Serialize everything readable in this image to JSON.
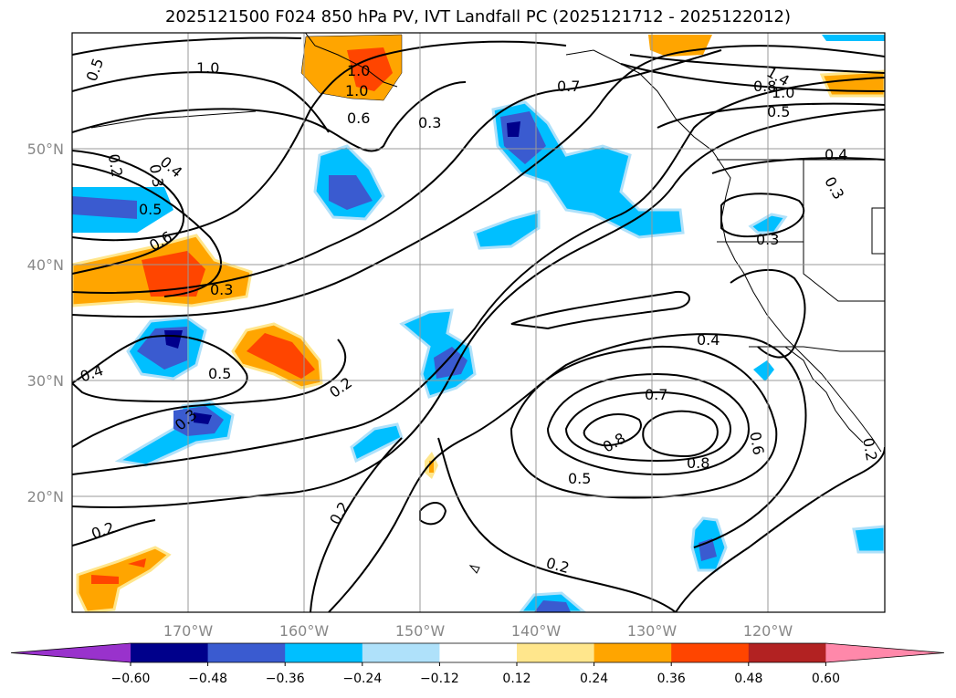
{
  "title": "2025121500 F024 850 hPa PV, IVT Landfall PC (2025121712 - 2025122012)",
  "map": {
    "projection": "PlateCarree",
    "lon_range": [
      -180,
      -110
    ],
    "lat_range": [
      10,
      60
    ],
    "lon_ticks": [
      "170°W",
      "160°W",
      "150°W",
      "140°W",
      "130°W",
      "120°W"
    ],
    "lat_ticks": [
      "50°N",
      "40°N",
      "30°N",
      "20°N"
    ],
    "grid": true
  },
  "colorbar": {
    "ticks": [
      "−0.60",
      "−0.48",
      "−0.36",
      "−0.24",
      "−0.12",
      "0.12",
      "0.24",
      "0.36",
      "0.48",
      "0.60"
    ],
    "colors": [
      "#9932cc",
      "#00008b",
      "#3a5bd0",
      "#00bfff",
      "#afe1fa",
      "#ffffff",
      "#ffe68c",
      "#ffa500",
      "#ff4500",
      "#b22222",
      "#ff88aa"
    ],
    "extend": "both"
  },
  "contour_labels": [
    {
      "text": "0.5"
    },
    {
      "text": "1.0"
    },
    {
      "text": "1.0"
    },
    {
      "text": "1.0"
    },
    {
      "text": "0.6"
    },
    {
      "text": "0.3"
    },
    {
      "text": "0.2"
    },
    {
      "text": "0.3"
    },
    {
      "text": "0.4"
    },
    {
      "text": "0.5"
    },
    {
      "text": "0.6"
    },
    {
      "text": "0.3"
    },
    {
      "text": "0.7"
    },
    {
      "text": "1.4"
    },
    {
      "text": "0.8"
    },
    {
      "text": "1.0"
    },
    {
      "text": "0.5"
    },
    {
      "text": "0.4"
    },
    {
      "text": "0.3"
    },
    {
      "text": "0.3"
    },
    {
      "text": "0.4"
    },
    {
      "text": "0.5"
    },
    {
      "text": "0.2"
    },
    {
      "text": "0.3"
    },
    {
      "text": "0.4"
    },
    {
      "text": "0.7"
    },
    {
      "text": "0.8"
    },
    {
      "text": "0.8"
    },
    {
      "text": "0.6"
    },
    {
      "text": "0.5"
    },
    {
      "text": "0.2"
    },
    {
      "text": "0.2"
    },
    {
      "text": "0.2"
    },
    {
      "text": "0.2"
    }
  ]
}
